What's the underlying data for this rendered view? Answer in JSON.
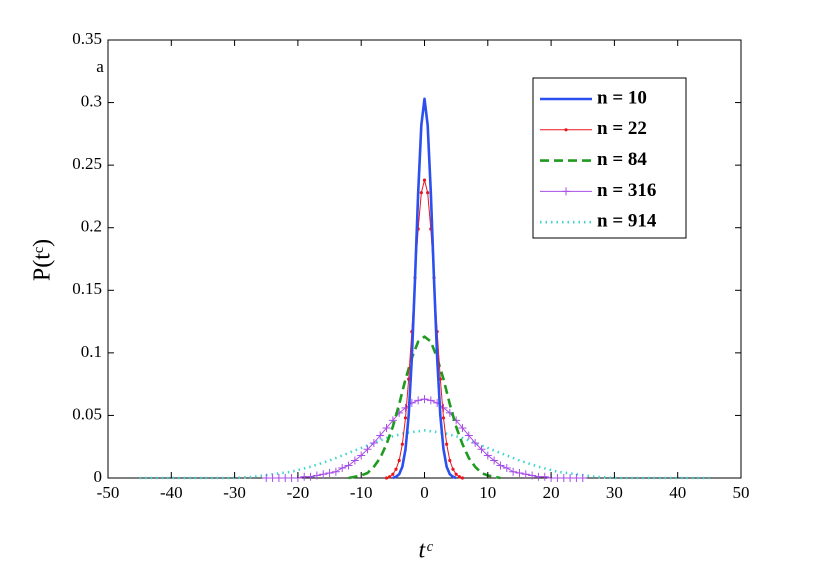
{
  "chart_data": {
    "type": "line",
    "annotation": "a",
    "xlabel": "tᶜ",
    "ylabel": "P(tᶜ)",
    "xlim": [
      -50,
      50
    ],
    "xticks": [
      -50,
      -40,
      -30,
      -20,
      -10,
      0,
      10,
      20,
      30,
      40,
      50
    ],
    "ylim": [
      0,
      0.35
    ],
    "yticks": [
      0,
      0.05,
      0.1,
      0.15,
      0.2,
      0.25,
      0.3,
      0.35
    ],
    "grid": false,
    "legend": "upper right",
    "series": [
      {
        "name": "n = 10",
        "color": "#2c4ff0",
        "linestyle": "solid",
        "marker": null,
        "x": [
          -5,
          -4.5,
          -4,
          -3.5,
          -3,
          -2.5,
          -2,
          -1.5,
          -1,
          -0.5,
          0,
          0.5,
          1,
          1.5,
          2,
          2.5,
          3,
          3.5,
          4,
          4.5,
          5
        ],
        "values": [
          0,
          0.001,
          0.003,
          0.009,
          0.023,
          0.05,
          0.096,
          0.159,
          0.228,
          0.282,
          0.303,
          0.282,
          0.228,
          0.159,
          0.096,
          0.05,
          0.023,
          0.009,
          0.003,
          0.001,
          0
        ]
      },
      {
        "name": "n = 22",
        "color": "#e8171f",
        "linestyle": "solid",
        "marker": "dot",
        "x": [
          -6,
          -5.5,
          -5,
          -4.5,
          -4,
          -3.5,
          -3,
          -2.5,
          -2,
          -1.5,
          -1,
          -0.5,
          0,
          0.5,
          1,
          1.5,
          2,
          2.5,
          3,
          3.5,
          4,
          4.5,
          5,
          5.5,
          6
        ],
        "values": [
          0,
          0.001,
          0.003,
          0.007,
          0.014,
          0.027,
          0.048,
          0.079,
          0.117,
          0.16,
          0.199,
          0.228,
          0.238,
          0.228,
          0.199,
          0.16,
          0.117,
          0.079,
          0.048,
          0.027,
          0.014,
          0.007,
          0.003,
          0.001,
          0
        ]
      },
      {
        "name": "n = 84",
        "color": "#1f9a1f",
        "linestyle": "dashed",
        "marker": null,
        "x": [
          -12,
          -11,
          -10,
          -9,
          -8,
          -7,
          -6,
          -5,
          -4,
          -3,
          -2,
          -1,
          0,
          1,
          2,
          3,
          4,
          5,
          6,
          7,
          8,
          9,
          10,
          11,
          12
        ],
        "values": [
          0,
          0.001,
          0.002,
          0.004,
          0.009,
          0.016,
          0.027,
          0.041,
          0.059,
          0.079,
          0.096,
          0.109,
          0.113,
          0.109,
          0.096,
          0.079,
          0.059,
          0.041,
          0.027,
          0.016,
          0.009,
          0.004,
          0.002,
          0.001,
          0
        ]
      },
      {
        "name": "n = 316",
        "color": "#a84ee8",
        "linestyle": "solid",
        "marker": "plus",
        "x": [
          -25,
          -24,
          -23,
          -22,
          -21,
          -20,
          -19,
          -18,
          -17,
          -16,
          -15,
          -14,
          -13,
          -12,
          -11,
          -10,
          -9,
          -8,
          -7,
          -6,
          -5,
          -4,
          -3,
          -2,
          -1,
          0,
          1,
          2,
          3,
          4,
          5,
          6,
          7,
          8,
          9,
          10,
          11,
          12,
          13,
          14,
          15,
          16,
          17,
          18,
          19,
          20,
          21,
          22,
          23,
          24,
          25
        ],
        "values": [
          0,
          0,
          0,
          0,
          0,
          0,
          0.001,
          0.001,
          0.002,
          0.003,
          0.004,
          0.005,
          0.008,
          0.01,
          0.014,
          0.018,
          0.023,
          0.028,
          0.034,
          0.04,
          0.046,
          0.052,
          0.056,
          0.06,
          0.062,
          0.063,
          0.062,
          0.06,
          0.056,
          0.052,
          0.046,
          0.04,
          0.034,
          0.028,
          0.023,
          0.018,
          0.014,
          0.01,
          0.008,
          0.005,
          0.004,
          0.003,
          0.002,
          0.001,
          0.001,
          0,
          0,
          0,
          0,
          0,
          0
        ]
      },
      {
        "name": "n = 914",
        "color": "#3fd6d0",
        "linestyle": "dotted",
        "marker": null,
        "x": [
          -45,
          -42,
          -39,
          -36,
          -33,
          -30,
          -27,
          -24,
          -21,
          -18,
          -15,
          -12,
          -9,
          -6,
          -3,
          0,
          3,
          6,
          9,
          12,
          15,
          18,
          21,
          24,
          27,
          30,
          33,
          36,
          39,
          42,
          45
        ],
        "values": [
          0,
          0,
          0,
          0,
          0,
          0,
          0.001,
          0.003,
          0.005,
          0.009,
          0.014,
          0.02,
          0.026,
          0.032,
          0.036,
          0.038,
          0.036,
          0.032,
          0.026,
          0.02,
          0.014,
          0.009,
          0.005,
          0.003,
          0.001,
          0,
          0,
          0,
          0,
          0,
          0
        ]
      }
    ]
  }
}
